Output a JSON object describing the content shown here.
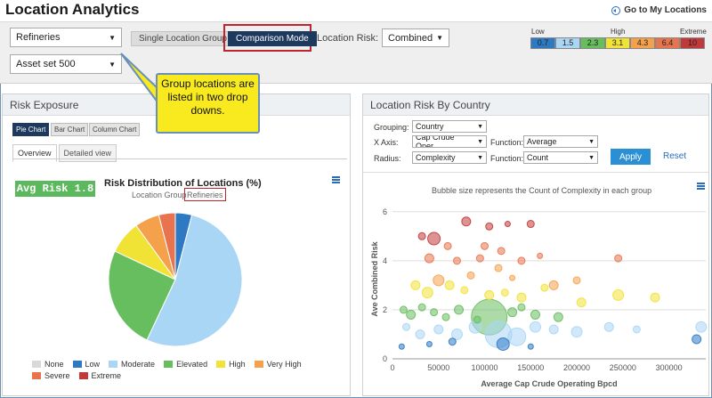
{
  "header": {
    "title": "Location Analytics",
    "goto_label": "Go to My Locations"
  },
  "toolbar": {
    "group_select": "Refineries",
    "asset_select": "Asset set 500",
    "single_location_label": "Single Location Group",
    "comparison_label": "Comparison Mode",
    "location_risk_label": "Location Risk:",
    "location_risk_value": "Combined"
  },
  "risk_legend": {
    "low_label": "Low",
    "high_label": "High",
    "extreme_label": "Extreme",
    "cells": [
      {
        "value": "0.7",
        "color": "#2e79c4"
      },
      {
        "value": "1.5",
        "color": "#a9d6f5"
      },
      {
        "value": "2.3",
        "color": "#67be5e"
      },
      {
        "value": "3.1",
        "color": "#f1e236"
      },
      {
        "value": "4.3",
        "color": "#f5a14c"
      },
      {
        "value": "6.4",
        "color": "#e8744f"
      },
      {
        "value": "10",
        "color": "#c13a3a"
      }
    ]
  },
  "callout": {
    "text": "Group locations are listed in two drop downs."
  },
  "left_panel": {
    "title": "Risk Exposure",
    "chart_buttons": [
      "Pie Chart",
      "Bar Chart",
      "Column Chart"
    ],
    "tabs": [
      "Overview",
      "Detailed view"
    ],
    "avg_risk": "Avg Risk 1.8",
    "chart_title": "Risk Distribution of Locations (%)",
    "chart_subtitle_prefix": "Location Group",
    "chart_subtitle_value": "Refineries"
  },
  "chart_data": [
    {
      "type": "pie",
      "title": "Risk Distribution of Locations (%)",
      "subtitle": "Location Group Refineries",
      "categories": [
        "None",
        "Low",
        "Moderate",
        "Elevated",
        "High",
        "Very High",
        "Severe",
        "Extreme"
      ],
      "values": [
        0,
        4,
        53,
        25,
        8,
        6,
        4,
        0
      ],
      "colors": [
        "#d9d9d9",
        "#2e79c4",
        "#a9d6f5",
        "#67be5e",
        "#f1e236",
        "#f5a14c",
        "#e8744f",
        "#c13a3a"
      ],
      "legend": "bottom"
    },
    {
      "type": "scatter",
      "title": "Bubble size represents the Count of Complexity in each group",
      "xlabel": "Average Cap Crude Operating Bpcd",
      "ylabel": "Ave Combined Risk",
      "xlim": [
        0,
        340000
      ],
      "ylim": [
        0,
        6.5
      ],
      "xticks": [
        0,
        50000,
        100000,
        150000,
        200000,
        250000,
        300000
      ],
      "yticks": [
        0,
        2,
        4,
        6
      ],
      "grid": true,
      "points": [
        {
          "x": 80000,
          "y": 5.6,
          "r": 5,
          "c": "#c13a3a"
        },
        {
          "x": 105000,
          "y": 5.4,
          "r": 4,
          "c": "#c13a3a"
        },
        {
          "x": 125000,
          "y": 5.5,
          "r": 3,
          "c": "#c13a3a"
        },
        {
          "x": 150000,
          "y": 5.5,
          "r": 4,
          "c": "#c13a3a"
        },
        {
          "x": 45000,
          "y": 4.9,
          "r": 7,
          "c": "#c13a3a"
        },
        {
          "x": 32000,
          "y": 5.0,
          "r": 4,
          "c": "#c13a3a"
        },
        {
          "x": 60000,
          "y": 4.6,
          "r": 4,
          "c": "#e8744f"
        },
        {
          "x": 95000,
          "y": 4.1,
          "r": 4,
          "c": "#e8744f"
        },
        {
          "x": 100000,
          "y": 4.6,
          "r": 4,
          "c": "#e8744f"
        },
        {
          "x": 118000,
          "y": 4.4,
          "r": 4,
          "c": "#e8744f"
        },
        {
          "x": 40000,
          "y": 4.1,
          "r": 5,
          "c": "#e8744f"
        },
        {
          "x": 70000,
          "y": 4.0,
          "r": 4,
          "c": "#e8744f"
        },
        {
          "x": 140000,
          "y": 4.0,
          "r": 4,
          "c": "#e8744f"
        },
        {
          "x": 160000,
          "y": 4.2,
          "r": 3,
          "c": "#e8744f"
        },
        {
          "x": 245000,
          "y": 4.1,
          "r": 4,
          "c": "#e8744f"
        },
        {
          "x": 50000,
          "y": 3.2,
          "r": 6,
          "c": "#f5a14c"
        },
        {
          "x": 85000,
          "y": 3.4,
          "r": 4,
          "c": "#f5a14c"
        },
        {
          "x": 115000,
          "y": 3.7,
          "r": 4,
          "c": "#f5a14c"
        },
        {
          "x": 130000,
          "y": 3.3,
          "r": 3,
          "c": "#f5a14c"
        },
        {
          "x": 175000,
          "y": 3.0,
          "r": 5,
          "c": "#f5a14c"
        },
        {
          "x": 200000,
          "y": 3.2,
          "r": 4,
          "c": "#f5a14c"
        },
        {
          "x": 25000,
          "y": 3.0,
          "r": 5,
          "c": "#f1e236"
        },
        {
          "x": 38000,
          "y": 2.7,
          "r": 6,
          "c": "#f1e236"
        },
        {
          "x": 62000,
          "y": 3.0,
          "r": 5,
          "c": "#f1e236"
        },
        {
          "x": 78000,
          "y": 2.8,
          "r": 4,
          "c": "#f1e236"
        },
        {
          "x": 105000,
          "y": 2.6,
          "r": 5,
          "c": "#f1e236"
        },
        {
          "x": 122000,
          "y": 2.7,
          "r": 4,
          "c": "#f1e236"
        },
        {
          "x": 140000,
          "y": 2.5,
          "r": 5,
          "c": "#f1e236"
        },
        {
          "x": 165000,
          "y": 2.9,
          "r": 4,
          "c": "#f1e236"
        },
        {
          "x": 205000,
          "y": 2.3,
          "r": 5,
          "c": "#f1e236"
        },
        {
          "x": 245000,
          "y": 2.6,
          "r": 6,
          "c": "#f1e236"
        },
        {
          "x": 285000,
          "y": 2.5,
          "r": 5,
          "c": "#f1e236"
        },
        {
          "x": 12000,
          "y": 2.0,
          "r": 4,
          "c": "#67be5e"
        },
        {
          "x": 20000,
          "y": 1.8,
          "r": 5,
          "c": "#67be5e"
        },
        {
          "x": 32000,
          "y": 2.1,
          "r": 4,
          "c": "#67be5e"
        },
        {
          "x": 45000,
          "y": 1.9,
          "r": 4,
          "c": "#67be5e"
        },
        {
          "x": 58000,
          "y": 1.7,
          "r": 4,
          "c": "#67be5e"
        },
        {
          "x": 72000,
          "y": 2.0,
          "r": 5,
          "c": "#67be5e"
        },
        {
          "x": 92000,
          "y": 1.6,
          "r": 4,
          "c": "#67be5e"
        },
        {
          "x": 105000,
          "y": 1.7,
          "r": 20,
          "c": "#67be5e"
        },
        {
          "x": 130000,
          "y": 1.9,
          "r": 5,
          "c": "#67be5e"
        },
        {
          "x": 155000,
          "y": 1.8,
          "r": 5,
          "c": "#67be5e"
        },
        {
          "x": 180000,
          "y": 1.7,
          "r": 5,
          "c": "#67be5e"
        },
        {
          "x": 140000,
          "y": 2.1,
          "r": 4,
          "c": "#67be5e"
        },
        {
          "x": 15000,
          "y": 1.3,
          "r": 4,
          "c": "#a9d6f5"
        },
        {
          "x": 30000,
          "y": 1.0,
          "r": 5,
          "c": "#a9d6f5"
        },
        {
          "x": 50000,
          "y": 1.2,
          "r": 5,
          "c": "#a9d6f5"
        },
        {
          "x": 70000,
          "y": 1.0,
          "r": 6,
          "c": "#a9d6f5"
        },
        {
          "x": 90000,
          "y": 1.3,
          "r": 7,
          "c": "#a9d6f5"
        },
        {
          "x": 115000,
          "y": 1.0,
          "r": 15,
          "c": "#a9d6f5"
        },
        {
          "x": 135000,
          "y": 0.9,
          "r": 10,
          "c": "#a9d6f5"
        },
        {
          "x": 155000,
          "y": 1.3,
          "r": 6,
          "c": "#a9d6f5"
        },
        {
          "x": 175000,
          "y": 1.2,
          "r": 5,
          "c": "#a9d6f5"
        },
        {
          "x": 200000,
          "y": 1.1,
          "r": 6,
          "c": "#a9d6f5"
        },
        {
          "x": 235000,
          "y": 1.3,
          "r": 5,
          "c": "#a9d6f5"
        },
        {
          "x": 265000,
          "y": 1.2,
          "r": 4,
          "c": "#a9d6f5"
        },
        {
          "x": 335000,
          "y": 1.3,
          "r": 6,
          "c": "#a9d6f5"
        },
        {
          "x": 10000,
          "y": 0.5,
          "r": 3,
          "c": "#2e79c4"
        },
        {
          "x": 40000,
          "y": 0.6,
          "r": 3,
          "c": "#2e79c4"
        },
        {
          "x": 65000,
          "y": 0.7,
          "r": 4,
          "c": "#2e79c4"
        },
        {
          "x": 120000,
          "y": 0.6,
          "r": 7,
          "c": "#2e79c4"
        },
        {
          "x": 150000,
          "y": 0.5,
          "r": 3,
          "c": "#2e79c4"
        },
        {
          "x": 330000,
          "y": 0.8,
          "r": 5,
          "c": "#2e79c4"
        }
      ]
    }
  ],
  "right_panel": {
    "title": "Location Risk By Country",
    "grouping_label": "Grouping:",
    "grouping_value": "Country",
    "xaxis_label": "X Axis:",
    "xaxis_value": "Cap Crude Oper",
    "radius_label": "Radius:",
    "radius_value": "Complexity",
    "function_label": "Function:",
    "function1_value": "Average",
    "function2_value": "Count",
    "apply_label": "Apply",
    "reset_label": "Reset"
  },
  "pie_legend_items": [
    {
      "label": "None",
      "color": "#d9d9d9"
    },
    {
      "label": "Low",
      "color": "#2e79c4"
    },
    {
      "label": "Moderate",
      "color": "#a9d6f5"
    },
    {
      "label": "Elevated",
      "color": "#67be5e"
    },
    {
      "label": "High",
      "color": "#f1e236"
    },
    {
      "label": "Very High",
      "color": "#f5a14c"
    },
    {
      "label": "Severe",
      "color": "#e8744f"
    },
    {
      "label": "Extreme",
      "color": "#c13a3a"
    }
  ]
}
